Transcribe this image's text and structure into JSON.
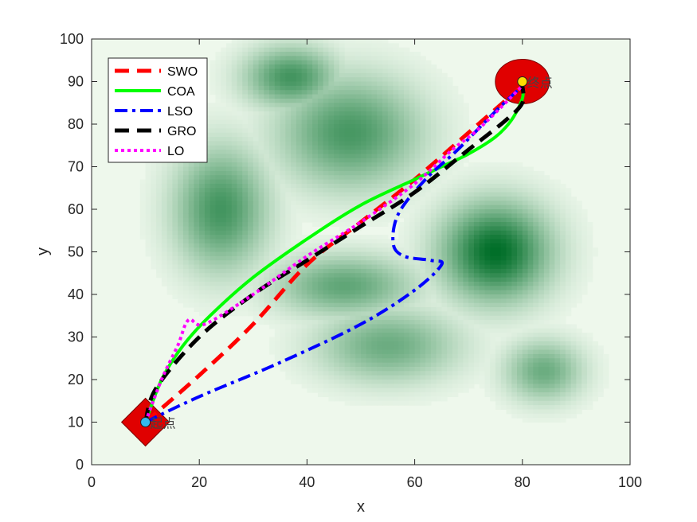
{
  "chart_data": {
    "type": "line",
    "title": "",
    "xlabel": "x",
    "ylabel": "y",
    "xlim": [
      0,
      100
    ],
    "ylim": [
      0,
      100
    ],
    "xticks": [
      0,
      20,
      40,
      60,
      80,
      100
    ],
    "yticks": [
      0,
      10,
      20,
      30,
      40,
      50,
      60,
      70,
      80,
      90,
      100
    ],
    "grid": false,
    "legend_position": "top-left",
    "start": {
      "x": 10,
      "y": 10,
      "label": "起点",
      "zone_color": "#e00000",
      "marker_color": "#33bbee"
    },
    "goal": {
      "x": 80,
      "y": 90,
      "label": "终点",
      "zone_color": "#e00000",
      "marker_color": "#ffdd00"
    },
    "terrain": [
      {
        "x": 75,
        "y": 50,
        "sx": 7,
        "sy": 8,
        "h": 1.0
      },
      {
        "x": 48,
        "y": 78,
        "sx": 9,
        "sy": 9,
        "h": 0.7
      },
      {
        "x": 37,
        "y": 91,
        "sx": 6,
        "sy": 5,
        "h": 0.72
      },
      {
        "x": 24,
        "y": 60,
        "sx": 6,
        "sy": 10,
        "h": 0.72
      },
      {
        "x": 47,
        "y": 42,
        "sx": 9,
        "sy": 5,
        "h": 0.6
      },
      {
        "x": 55,
        "y": 28,
        "sx": 9,
        "sy": 6,
        "h": 0.55
      },
      {
        "x": 84,
        "y": 22,
        "sx": 5,
        "sy": 5,
        "h": 0.55
      }
    ],
    "series": [
      {
        "name": "SWO",
        "color": "#ff0000",
        "dash": "18,10",
        "width": 5,
        "points": [
          [
            10,
            10
          ],
          [
            20,
            21
          ],
          [
            30,
            33
          ],
          [
            40,
            47
          ],
          [
            50,
            57
          ],
          [
            60,
            67
          ],
          [
            70,
            78
          ],
          [
            80,
            89
          ]
        ]
      },
      {
        "name": "COA",
        "color": "#00ff00",
        "dash": "",
        "width": 4,
        "points": [
          [
            10,
            10
          ],
          [
            13,
            20
          ],
          [
            17,
            28
          ],
          [
            22,
            35
          ],
          [
            30,
            44
          ],
          [
            40,
            53
          ],
          [
            50,
            61
          ],
          [
            60,
            67
          ],
          [
            65,
            70
          ],
          [
            70,
            73
          ],
          [
            75,
            77
          ],
          [
            78,
            81
          ],
          [
            80,
            86
          ],
          [
            80,
            89
          ]
        ]
      },
      {
        "name": "LSO",
        "color": "#0000ff",
        "dash": "16,6,4,6",
        "width": 4,
        "points": [
          [
            10,
            10
          ],
          [
            20,
            16
          ],
          [
            35,
            24
          ],
          [
            50,
            33
          ],
          [
            60,
            41
          ],
          [
            65,
            47
          ],
          [
            63,
            48
          ],
          [
            58,
            49
          ],
          [
            56,
            52
          ],
          [
            57,
            59
          ],
          [
            62,
            67
          ],
          [
            68,
            74
          ],
          [
            75,
            83
          ],
          [
            80,
            89
          ]
        ]
      },
      {
        "name": "GRO",
        "color": "#000000",
        "dash": "18,10",
        "width": 5,
        "points": [
          [
            10,
            10
          ],
          [
            12,
            18
          ],
          [
            20,
            30
          ],
          [
            30,
            40
          ],
          [
            40,
            48
          ],
          [
            50,
            56
          ],
          [
            60,
            64
          ],
          [
            70,
            74
          ],
          [
            77,
            81
          ],
          [
            80,
            85
          ],
          [
            80,
            89
          ]
        ]
      },
      {
        "name": "LO",
        "color": "#ff00ff",
        "dash": "4,4",
        "width": 4,
        "points": [
          [
            10,
            10
          ],
          [
            13,
            20
          ],
          [
            16,
            28
          ],
          [
            18,
            34
          ],
          [
            21,
            33
          ],
          [
            30,
            40
          ],
          [
            40,
            49
          ],
          [
            50,
            57
          ],
          [
            60,
            66
          ],
          [
            67,
            74
          ],
          [
            72,
            79
          ],
          [
            80,
            89
          ]
        ]
      }
    ]
  }
}
